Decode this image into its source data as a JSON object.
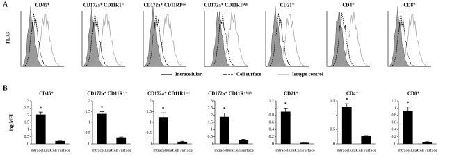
{
  "panel_a": {
    "label": "A",
    "y_label": "TLR3",
    "titles": [
      "CD45⁺",
      "CD172a⁺ CD11R1⁻",
      "CD172a⁺ CD11R1ˡᵒʷ",
      "CD172a⁺ CD11R1ʰⁱᵍʰ",
      "CD21⁺",
      "CD4⁺",
      "CD8⁺"
    ],
    "legend": [
      "Intracellular",
      "Cell surface",
      "Isotype control"
    ]
  },
  "panel_b": {
    "label": "B"
  },
  "chart_data": [
    {
      "type": "bar",
      "title": "CD45⁺",
      "y_label": "log MFI",
      "categories": [
        "Intracellular",
        "Cell surface"
      ],
      "values": [
        2.05,
        0.2
      ],
      "errors": [
        0.17,
        0.04
      ],
      "annotation": "*",
      "color": "#000000",
      "ylim": [
        0,
        3
      ],
      "yticks": [
        0,
        0.5,
        1,
        1.5,
        2,
        2.5,
        3
      ]
    },
    {
      "type": "bar",
      "title": "CD172a⁺ CD11R1⁻",
      "categories": [
        "Intracellular",
        "Cell surface"
      ],
      "values": [
        1.4,
        0.3
      ],
      "errors": [
        0.1,
        0.02
      ],
      "annotation": "*",
      "color": "#000000",
      "ylim": [
        0,
        2
      ],
      "yticks": [
        0,
        0.5,
        1,
        1.5,
        2
      ]
    },
    {
      "type": "bar",
      "title": "CD172a⁺ CD11R1ˡᵒʷ",
      "categories": [
        "Intracellular",
        "Cell surface"
      ],
      "values": [
        1.25,
        0.1
      ],
      "errors": [
        0.2,
        0.02
      ],
      "annotation": "*",
      "color": "#000000",
      "ylim": [
        0,
        2
      ],
      "yticks": [
        0,
        0.5,
        1,
        1.5,
        2
      ]
    },
    {
      "type": "bar",
      "title": "CD172a⁺ CD11R1ʰⁱᵍʰ",
      "categories": [
        "Intracellular",
        "Cell surface"
      ],
      "values": [
        1.9,
        0.25
      ],
      "errors": [
        0.25,
        0.07
      ],
      "annotation": "*",
      "color": "#000000",
      "ylim": [
        0,
        3
      ],
      "yticks": [
        0,
        0.5,
        1,
        1.5,
        2,
        2.5,
        3
      ]
    },
    {
      "type": "bar",
      "title": "CD21⁺",
      "categories": [
        "Intracellular",
        "Cell surface"
      ],
      "values": [
        0.9,
        0.03
      ],
      "errors": [
        0.1,
        0.01
      ],
      "annotation": "*",
      "color": "#000000",
      "ylim": [
        0,
        1.2
      ],
      "yticks": [
        0,
        0.2,
        0.4,
        0.6,
        0.8,
        1,
        1.2
      ]
    },
    {
      "type": "bar",
      "title": "CD4⁺",
      "categories": [
        "Intracellular",
        "Cell surface"
      ],
      "values": [
        1.3,
        0.28
      ],
      "errors": [
        0.1,
        0.01
      ],
      "annotation": "*",
      "color": "#000000",
      "ylim": [
        0,
        1.5
      ],
      "yticks": [
        0,
        0.5,
        1,
        1.5
      ]
    },
    {
      "type": "bar",
      "title": "CD8⁺",
      "categories": [
        "Intracellular",
        "Cell surface"
      ],
      "values": [
        0.93,
        0.05
      ],
      "errors": [
        0.1,
        0.01
      ],
      "annotation": "*",
      "color": "#000000",
      "ylim": [
        0,
        1.2
      ],
      "yticks": [
        0,
        0.2,
        0.4,
        0.6,
        0.8,
        1,
        1.2
      ]
    }
  ]
}
